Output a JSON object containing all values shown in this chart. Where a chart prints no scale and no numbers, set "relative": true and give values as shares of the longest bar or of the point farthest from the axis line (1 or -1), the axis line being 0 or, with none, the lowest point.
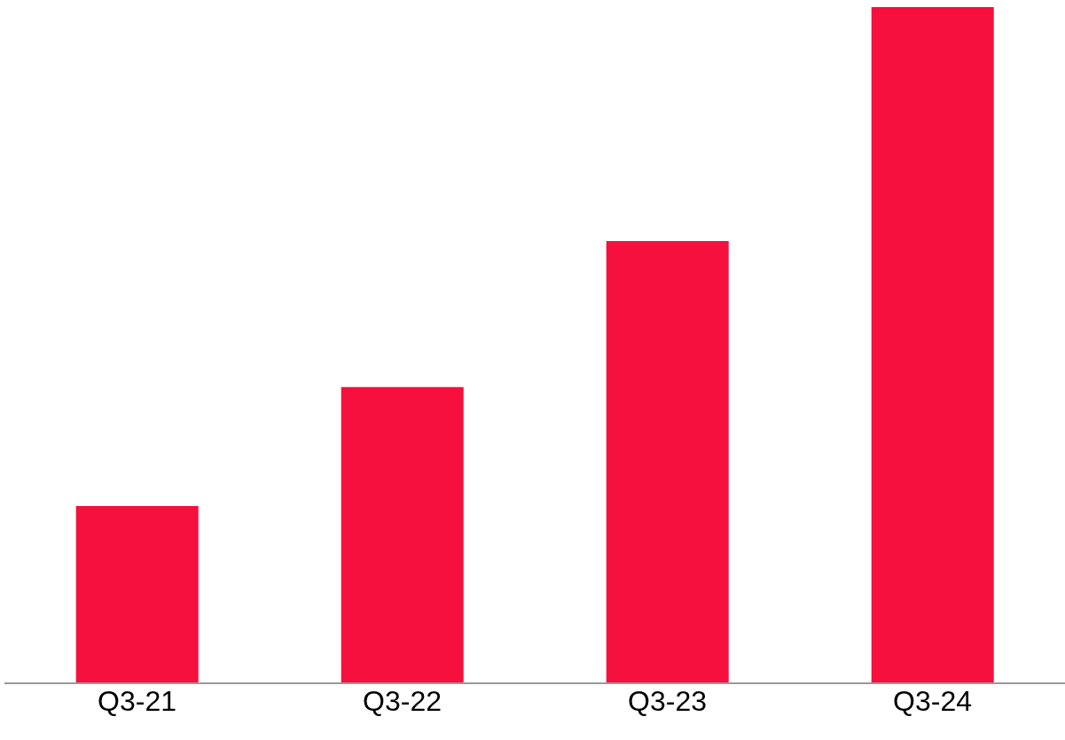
{
  "chart_data": {
    "type": "bar",
    "relative": true,
    "categories": [
      "Q3-21",
      "Q3-22",
      "Q3-23",
      "Q3-24"
    ],
    "values": [
      0.262,
      0.438,
      0.654,
      1
    ],
    "color": "#f5103d"
  }
}
